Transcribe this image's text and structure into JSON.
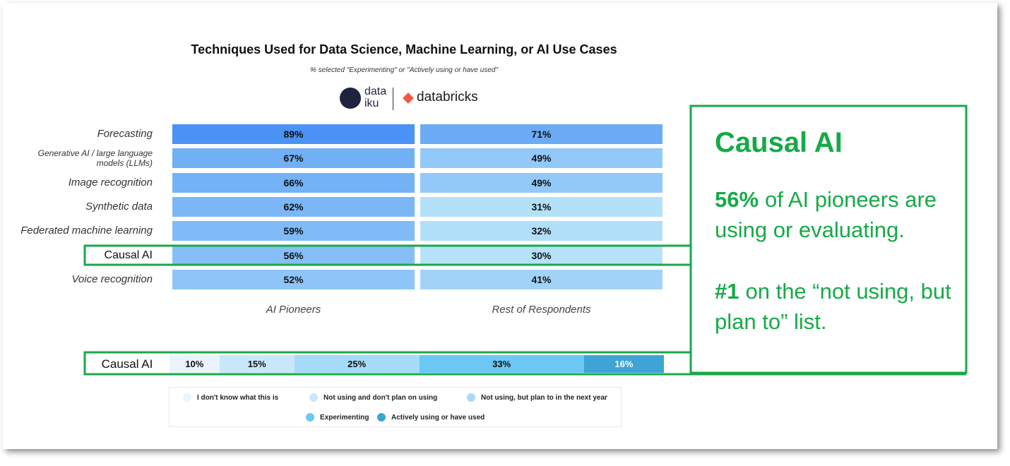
{
  "chart_data": [
    {
      "type": "heatmap",
      "title": "Techniques Used for Data Science, Machine Learning, or AI Use Cases",
      "subtitle": "% selected \"Experimenting\" or \"Actively using or have used\"",
      "categories": [
        "Forecasting",
        "Generative AI / large language models (LLMs)",
        "Image recognition",
        "Synthetic data",
        "Federated machine learning",
        "Causal AI",
        "Voice recognition"
      ],
      "series": [
        {
          "name": "AI Pioneers",
          "values": [
            89,
            67,
            66,
            62,
            59,
            56,
            52
          ],
          "value_labels": [
            "89%",
            "67%",
            "66%",
            "62%",
            "59%",
            "56%",
            "52%"
          ]
        },
        {
          "name": "Rest of Respondents",
          "values": [
            71,
            49,
            49,
            31,
            32,
            30,
            41
          ],
          "value_labels": [
            "71%",
            "49%",
            "49%",
            "31%",
            "32%",
            "30%",
            "41%"
          ]
        }
      ],
      "color_domain": [
        30,
        89
      ],
      "color_range": [
        "#b5e2f9",
        "#4a93f5"
      ]
    },
    {
      "type": "stacked-bar",
      "categories": [
        "Causal AI"
      ],
      "series": [
        {
          "name": "I don't know what this is",
          "color": "#e9f4fc",
          "values": [
            10
          ],
          "value_labels": [
            "10%"
          ]
        },
        {
          "name": "Not using and don't plan on using",
          "color": "#c8e8fa",
          "values": [
            15
          ],
          "value_labels": [
            "15%"
          ]
        },
        {
          "name": "Not using, but plan to in the next year",
          "color": "#a6dbf7",
          "values": [
            25
          ],
          "value_labels": [
            "25%"
          ]
        },
        {
          "name": "Experimenting",
          "color": "#6cc7f4",
          "values": [
            33
          ],
          "value_labels": [
            "33%"
          ]
        },
        {
          "name": "Actively using or have used",
          "color": "#3ea4d5",
          "values": [
            16
          ],
          "value_labels": [
            "16%"
          ]
        }
      ]
    }
  ],
  "logos": {
    "dataiku": [
      "data",
      "iku"
    ],
    "databricks": "databricks"
  },
  "callout": {
    "title": "Causal AI",
    "paragraphs": [
      {
        "highlight": "56%",
        "text": "of AI pioneers are using or evaluating."
      },
      {
        "highlight": "#1",
        "text": "on the “not using, but plan to” list."
      }
    ]
  }
}
